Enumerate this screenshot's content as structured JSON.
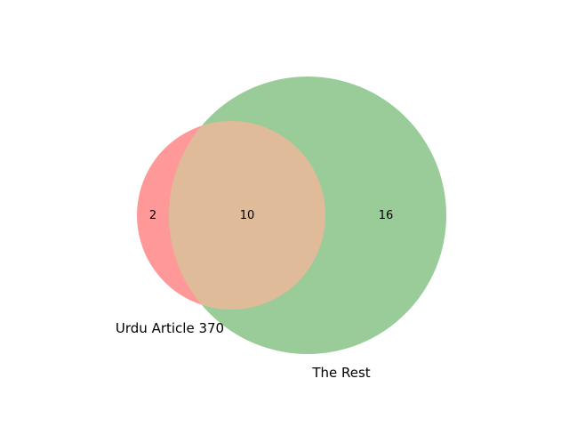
{
  "venn": {
    "sets": [
      {
        "name": "Urdu Article 370",
        "color": "#ff9999",
        "only_count": "2"
      },
      {
        "name": "The Rest",
        "color": "#99cc99",
        "only_count": "16"
      }
    ],
    "intersection": {
      "count": "10",
      "color": "#e0bb99"
    }
  }
}
